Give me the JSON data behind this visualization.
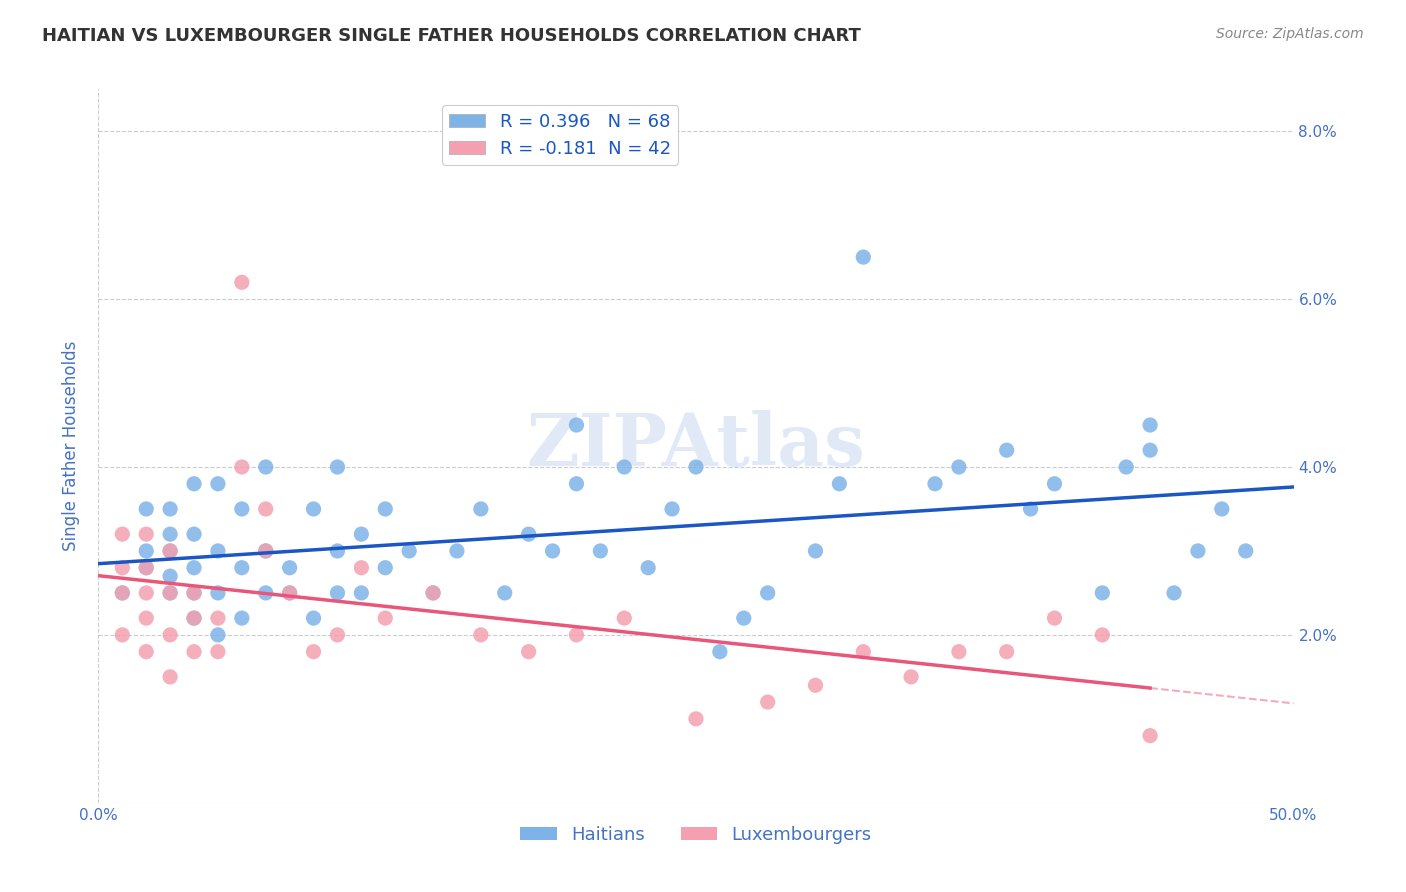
{
  "title": "HAITIAN VS LUXEMBOURGER SINGLE FATHER HOUSEHOLDS CORRELATION CHART",
  "source": "Source: ZipAtlas.com",
  "ylabel": "Single Father Households",
  "xlim": [
    0.0,
    0.5
  ],
  "ylim": [
    0.0,
    0.085
  ],
  "xticks": [
    0.0,
    0.1,
    0.2,
    0.3,
    0.4,
    0.5
  ],
  "yticks": [
    0.0,
    0.02,
    0.04,
    0.06,
    0.08
  ],
  "xticklabels": [
    "0.0%",
    "",
    "",
    "",
    "",
    "50.0%"
  ],
  "yticklabels_right": [
    "",
    "2.0%",
    "4.0%",
    "6.0%",
    "8.0%"
  ],
  "haitian_color": "#7EB3E8",
  "luxembourger_color": "#F4A0B0",
  "haitian_line_color": "#1A56C4",
  "luxembourger_line_color": "#E8567A",
  "haitian_R": 0.396,
  "haitian_N": 68,
  "luxembourger_R": -0.181,
  "luxembourger_N": 42,
  "background_color": "#ffffff",
  "grid_color": "#cccccc",
  "title_color": "#333333",
  "axis_label_color": "#4472C4",
  "tick_color": "#4472C4",
  "watermark": "ZIPAtlas",
  "haitian_x": [
    0.01,
    0.02,
    0.02,
    0.02,
    0.03,
    0.03,
    0.03,
    0.03,
    0.03,
    0.04,
    0.04,
    0.04,
    0.04,
    0.04,
    0.05,
    0.05,
    0.05,
    0.05,
    0.06,
    0.06,
    0.06,
    0.07,
    0.07,
    0.07,
    0.08,
    0.08,
    0.09,
    0.09,
    0.1,
    0.1,
    0.1,
    0.11,
    0.11,
    0.12,
    0.12,
    0.13,
    0.14,
    0.15,
    0.16,
    0.17,
    0.18,
    0.19,
    0.2,
    0.2,
    0.21,
    0.22,
    0.23,
    0.24,
    0.25,
    0.26,
    0.27,
    0.28,
    0.3,
    0.31,
    0.32,
    0.35,
    0.36,
    0.38,
    0.39,
    0.4,
    0.42,
    0.43,
    0.44,
    0.44,
    0.45,
    0.46,
    0.47,
    0.48
  ],
  "haitian_y": [
    0.025,
    0.028,
    0.03,
    0.035,
    0.025,
    0.027,
    0.03,
    0.032,
    0.035,
    0.022,
    0.025,
    0.028,
    0.032,
    0.038,
    0.02,
    0.025,
    0.03,
    0.038,
    0.022,
    0.028,
    0.035,
    0.025,
    0.03,
    0.04,
    0.025,
    0.028,
    0.022,
    0.035,
    0.025,
    0.03,
    0.04,
    0.025,
    0.032,
    0.028,
    0.035,
    0.03,
    0.025,
    0.03,
    0.035,
    0.025,
    0.032,
    0.03,
    0.038,
    0.045,
    0.03,
    0.04,
    0.028,
    0.035,
    0.04,
    0.018,
    0.022,
    0.025,
    0.03,
    0.038,
    0.065,
    0.038,
    0.04,
    0.042,
    0.035,
    0.038,
    0.025,
    0.04,
    0.042,
    0.045,
    0.025,
    0.03,
    0.035,
    0.03
  ],
  "luxembourger_x": [
    0.01,
    0.01,
    0.01,
    0.01,
    0.02,
    0.02,
    0.02,
    0.02,
    0.02,
    0.03,
    0.03,
    0.03,
    0.03,
    0.04,
    0.04,
    0.04,
    0.05,
    0.05,
    0.06,
    0.06,
    0.07,
    0.07,
    0.08,
    0.09,
    0.1,
    0.11,
    0.12,
    0.14,
    0.16,
    0.18,
    0.2,
    0.22,
    0.25,
    0.28,
    0.3,
    0.32,
    0.34,
    0.36,
    0.38,
    0.4,
    0.42,
    0.44
  ],
  "luxembourger_y": [
    0.02,
    0.025,
    0.028,
    0.032,
    0.018,
    0.022,
    0.025,
    0.028,
    0.032,
    0.015,
    0.02,
    0.025,
    0.03,
    0.018,
    0.022,
    0.025,
    0.018,
    0.022,
    0.062,
    0.04,
    0.03,
    0.035,
    0.025,
    0.018,
    0.02,
    0.028,
    0.022,
    0.025,
    0.02,
    0.018,
    0.02,
    0.022,
    0.01,
    0.012,
    0.014,
    0.018,
    0.015,
    0.018,
    0.018,
    0.022,
    0.02,
    0.008
  ]
}
